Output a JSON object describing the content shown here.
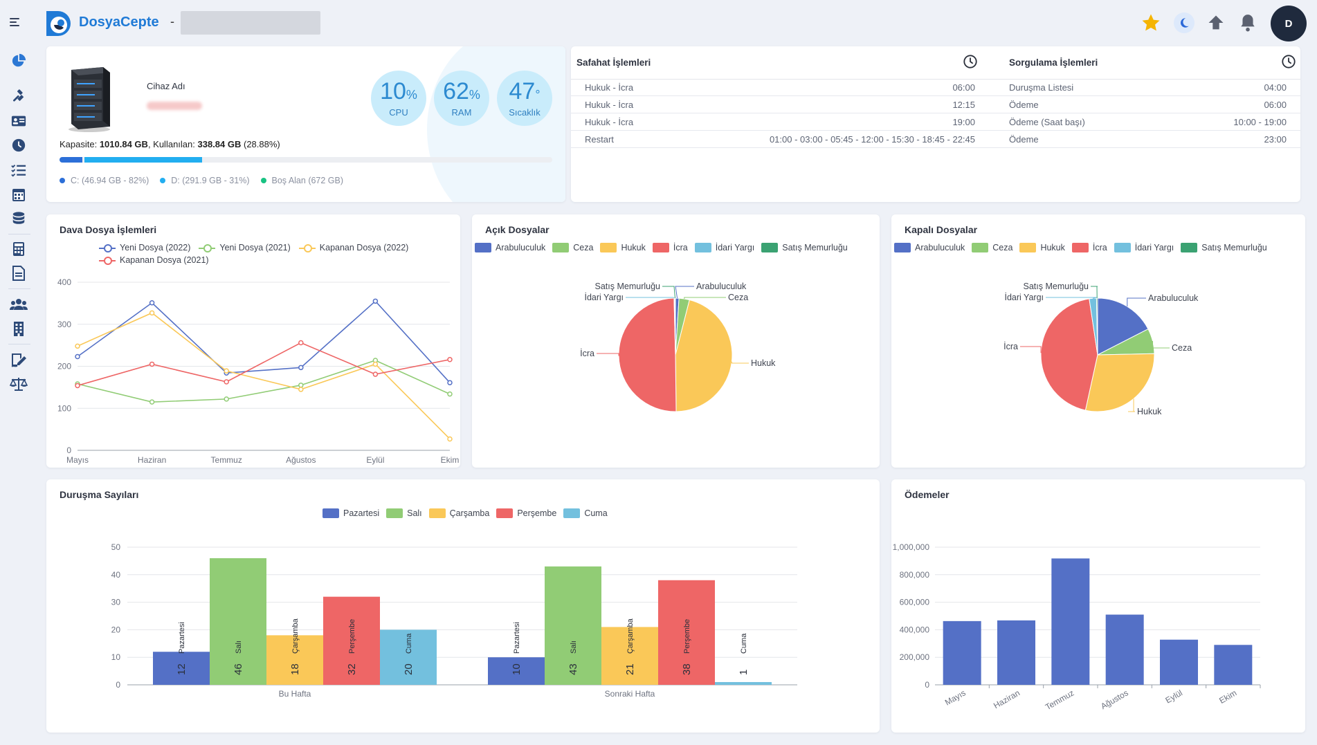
{
  "header": {
    "brand": "DosyaCepte",
    "brand_separator": "-",
    "avatar_letter": "D",
    "icons": [
      "menu-icon",
      "star-icon",
      "moon-icon",
      "upload-icon",
      "bell-icon"
    ]
  },
  "sidebar": {
    "icons": [
      "pie-chart-icon",
      "gavel-icon",
      "contact-card-icon",
      "clock-icon",
      "checklist-icon",
      "calendar-icon",
      "database-icon",
      "calculator-icon",
      "document-icon",
      "users-icon",
      "building-icon",
      "signature-icon",
      "scales-icon"
    ]
  },
  "device": {
    "name_label": "Cihaz Adı",
    "capacity_label": "Kapasite:",
    "capacity_value": "1010.84 GB",
    "used_label": ", Kullanılan:",
    "used_value": "338.84 GB",
    "used_pct": "(28.88%)",
    "bar": {
      "c_fraction": 0.0464,
      "d_fraction": 0.2888
    },
    "legend_c": "C: (46.94 GB - 82%)",
    "legend_d": "D: (291.9 GB - 31%)",
    "legend_free": "Boş Alan (672 GB)",
    "gauges": [
      {
        "value": "10",
        "unit": "%",
        "label": "CPU"
      },
      {
        "value": "62",
        "unit": "%",
        "label": "RAM"
      },
      {
        "value": "47",
        "unit": "°",
        "label": "Sıcaklık"
      }
    ]
  },
  "safahat": {
    "title": "Safahat İşlemleri",
    "rows": [
      {
        "name": "Hukuk - İcra",
        "time": "06:00"
      },
      {
        "name": "Hukuk - İcra",
        "time": "12:15"
      },
      {
        "name": "Hukuk - İcra",
        "time": "19:00"
      },
      {
        "name": "Restart",
        "time": "01:00 - 03:00 - 05:45 - 12:00 - 15:30 - 18:45 - 22:45"
      }
    ]
  },
  "sorgulama": {
    "title": "Sorgulama İşlemleri",
    "rows": [
      {
        "name": "Duruşma Listesi",
        "time": "04:00"
      },
      {
        "name": "Ödeme",
        "time": "06:00"
      },
      {
        "name": "Ödeme (Saat başı)",
        "time": "10:00 - 19:00"
      },
      {
        "name": "Ödeme",
        "time": "23:00"
      }
    ]
  },
  "colors": {
    "blue": "#5470c6",
    "green": "#91cc75",
    "yellow": "#fac858",
    "red": "#ee6666",
    "cyan": "#73c0de",
    "teal": "#3ba272",
    "brand": "#1f7ad6",
    "dark": "#1f2a3d"
  },
  "chart_data": [
    {
      "id": "dava",
      "type": "line",
      "title": "Dava Dosya İşlemleri",
      "categories": [
        "Mayıs",
        "Haziran",
        "Temmuz",
        "Ağustos",
        "Eylül",
        "Ekim"
      ],
      "ylim": [
        0,
        400
      ],
      "yticks": [
        "0",
        "100",
        "200",
        "300",
        "400"
      ],
      "series": [
        {
          "name": "Yeni Dosya (2022)",
          "color": "#5470c6",
          "values": [
            223,
            351,
            184,
            197,
            355,
            161
          ]
        },
        {
          "name": "Yeni Dosya (2021)",
          "color": "#91cc75",
          "values": [
            158,
            115,
            122,
            155,
            214,
            134
          ]
        },
        {
          "name": "Kapanan Dosya (2022)",
          "color": "#fac858",
          "values": [
            248,
            327,
            189,
            145,
            205,
            27
          ]
        },
        {
          "name": "Kapanan Dosya (2021)",
          "color": "#ee6666",
          "values": [
            154,
            205,
            163,
            256,
            181,
            216
          ]
        }
      ]
    },
    {
      "id": "acik",
      "type": "pie",
      "title": "Açık Dosyalar",
      "labels": [
        "Arabuluculuk",
        "Ceza",
        "Hukuk",
        "İcra",
        "İdari Yargı",
        "Satış Memurluğu"
      ],
      "colors": [
        "#5470c6",
        "#91cc75",
        "#fac858",
        "#ee6666",
        "#73c0de",
        "#3ba272"
      ],
      "values": [
        1,
        3,
        46,
        50,
        0.2,
        0.2
      ]
    },
    {
      "id": "kapali",
      "type": "pie",
      "title": "Kapalı Dosyalar",
      "labels": [
        "Arabuluculuk",
        "Ceza",
        "Hukuk",
        "İcra",
        "İdari Yargı",
        "Satış Memurluğu"
      ],
      "colors": [
        "#5470c6",
        "#91cc75",
        "#fac858",
        "#ee6666",
        "#73c0de",
        "#3ba272"
      ],
      "values": [
        17,
        7,
        28,
        43,
        2,
        0.3
      ]
    },
    {
      "id": "durusma",
      "type": "bar",
      "title": "Duruşma Sayıları",
      "categories": [
        "Bu Hafta",
        "Sonraki Hafta"
      ],
      "ylim": [
        0,
        50
      ],
      "yticks": [
        "0",
        "10",
        "20",
        "30",
        "40",
        "50"
      ],
      "series": [
        {
          "name": "Pazartesi",
          "color": "#5470c6",
          "values": [
            12,
            10
          ]
        },
        {
          "name": "Salı",
          "color": "#91cc75",
          "values": [
            46,
            43
          ]
        },
        {
          "name": "Çarşamba",
          "color": "#fac858",
          "values": [
            18,
            21
          ]
        },
        {
          "name": "Perşembe",
          "color": "#ee6666",
          "values": [
            32,
            38
          ]
        },
        {
          "name": "Cuma",
          "color": "#73c0de",
          "values": [
            20,
            1
          ]
        }
      ]
    },
    {
      "id": "odemeler",
      "type": "bar",
      "title": "Ödemeler",
      "categories": [
        "Mayıs",
        "Haziran",
        "Temmuz",
        "Ağustos",
        "Eylül",
        "Ekim"
      ],
      "ylim": [
        0,
        1000000
      ],
      "yticks": [
        "0",
        "200,000",
        "400,000",
        "600,000",
        "800,000",
        "1,000,000"
      ],
      "color": "#5470c6",
      "values": [
        463000,
        468000,
        918000,
        510000,
        328000,
        290000
      ]
    }
  ]
}
